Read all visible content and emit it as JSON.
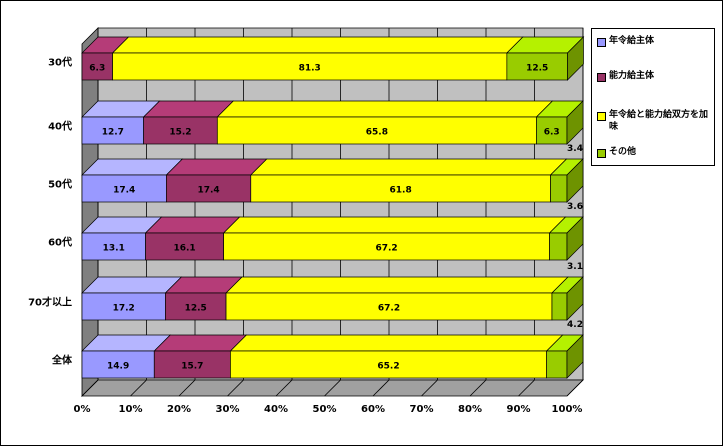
{
  "chart_data": {
    "type": "bar",
    "orientation": "horizontal",
    "stacked": "percent",
    "three_d": true,
    "categories": [
      "30代",
      "40代",
      "50代",
      "60代",
      "70才以上",
      "全体"
    ],
    "series": [
      {
        "name": "年令給主体",
        "color": "#9999ff",
        "values": [
          0,
          12.7,
          17.4,
          13.1,
          17.2,
          14.9
        ],
        "labels": [
          "",
          "12.7",
          "17.4",
          "13.1",
          "17.2",
          "14.9"
        ]
      },
      {
        "name": "能力給主体",
        "color": "#993366",
        "values": [
          6.3,
          15.2,
          17.4,
          16.1,
          12.5,
          15.7
        ],
        "labels": [
          "6.3",
          "15.2",
          "17.4",
          "16.1",
          "12.5",
          "15.7"
        ]
      },
      {
        "name": "年令給と能力給双方を加味",
        "color": "#ffff00",
        "values": [
          81.3,
          65.8,
          61.8,
          67.2,
          67.2,
          65.2
        ],
        "labels": [
          "81.3",
          "65.8",
          "61.8",
          "67.2",
          "67.2",
          "65.2"
        ]
      },
      {
        "name": "その他",
        "color": "#99cc00",
        "values": [
          12.5,
          6.3,
          3.4,
          3.6,
          3.1,
          4.2
        ],
        "labels": [
          "12.5",
          "6.3",
          "3.4",
          "3.6",
          "3.1",
          "4.2"
        ]
      }
    ],
    "x_ticks": [
      "0%",
      "10%",
      "20%",
      "30%",
      "40%",
      "50%",
      "60%",
      "70%",
      "80%",
      "90%",
      "100%"
    ],
    "xlim": [
      0,
      100
    ],
    "grid": true,
    "legend_position": "right",
    "colors": {
      "plot_back": "#c0c0c0",
      "plot_side": "#808080",
      "plot_floor": "#a0a0a0"
    }
  }
}
